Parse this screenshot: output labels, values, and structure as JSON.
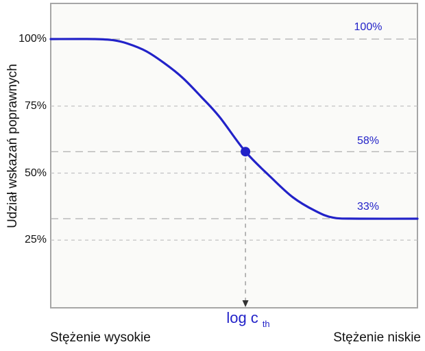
{
  "chart_data": {
    "type": "line",
    "title": "",
    "ylabel": "Udział wskazań poprawnych",
    "x_axis_labels": {
      "left": "Stężenie wysokie",
      "right": "Stężenie niskie"
    },
    "yticks": [
      {
        "label": "100%",
        "value": 100
      },
      {
        "label": "75%",
        "value": 75
      },
      {
        "label": "50%",
        "value": 50
      },
      {
        "label": "25%",
        "value": 25
      }
    ],
    "annotation_lines": [
      {
        "label": "100%",
        "value": 100
      },
      {
        "label": "58%",
        "value": 58
      },
      {
        "label": "33%",
        "value": 33
      }
    ],
    "threshold": {
      "label_main": "log c",
      "label_sub": "th",
      "x_frac": 0.531,
      "y_value": 58
    },
    "series": [
      {
        "name": "detection-probability-curve",
        "points": [
          [
            0.0,
            100
          ],
          [
            0.12,
            100
          ],
          [
            0.17,
            99.6
          ],
          [
            0.21,
            98.3
          ],
          [
            0.26,
            95.5
          ],
          [
            0.31,
            91.0
          ],
          [
            0.36,
            85.5
          ],
          [
            0.41,
            78.5
          ],
          [
            0.46,
            71.0
          ],
          [
            0.531,
            58.0
          ],
          [
            0.6,
            48.5
          ],
          [
            0.66,
            41.0
          ],
          [
            0.72,
            36.0
          ],
          [
            0.77,
            33.4
          ],
          [
            0.84,
            33.0
          ],
          [
            1.0,
            33.0
          ]
        ]
      }
    ],
    "upper_asymptote_percent": 100,
    "lower_asymptote_percent": 33,
    "ylim_percent": [
      0,
      113
    ],
    "grid": "horizontal-dashed",
    "legend": "none"
  },
  "colors": {
    "accent_blue": "#2222c8",
    "grid_dash_minor": "#c2c2c2",
    "grid_dash_major": "#aeaeae",
    "plot_border": "#a6a6a6",
    "plot_bg": "#fafaf8",
    "arrow_line": "#9a9a9a",
    "arrow_head": "#333333",
    "text_black": "#111111"
  }
}
